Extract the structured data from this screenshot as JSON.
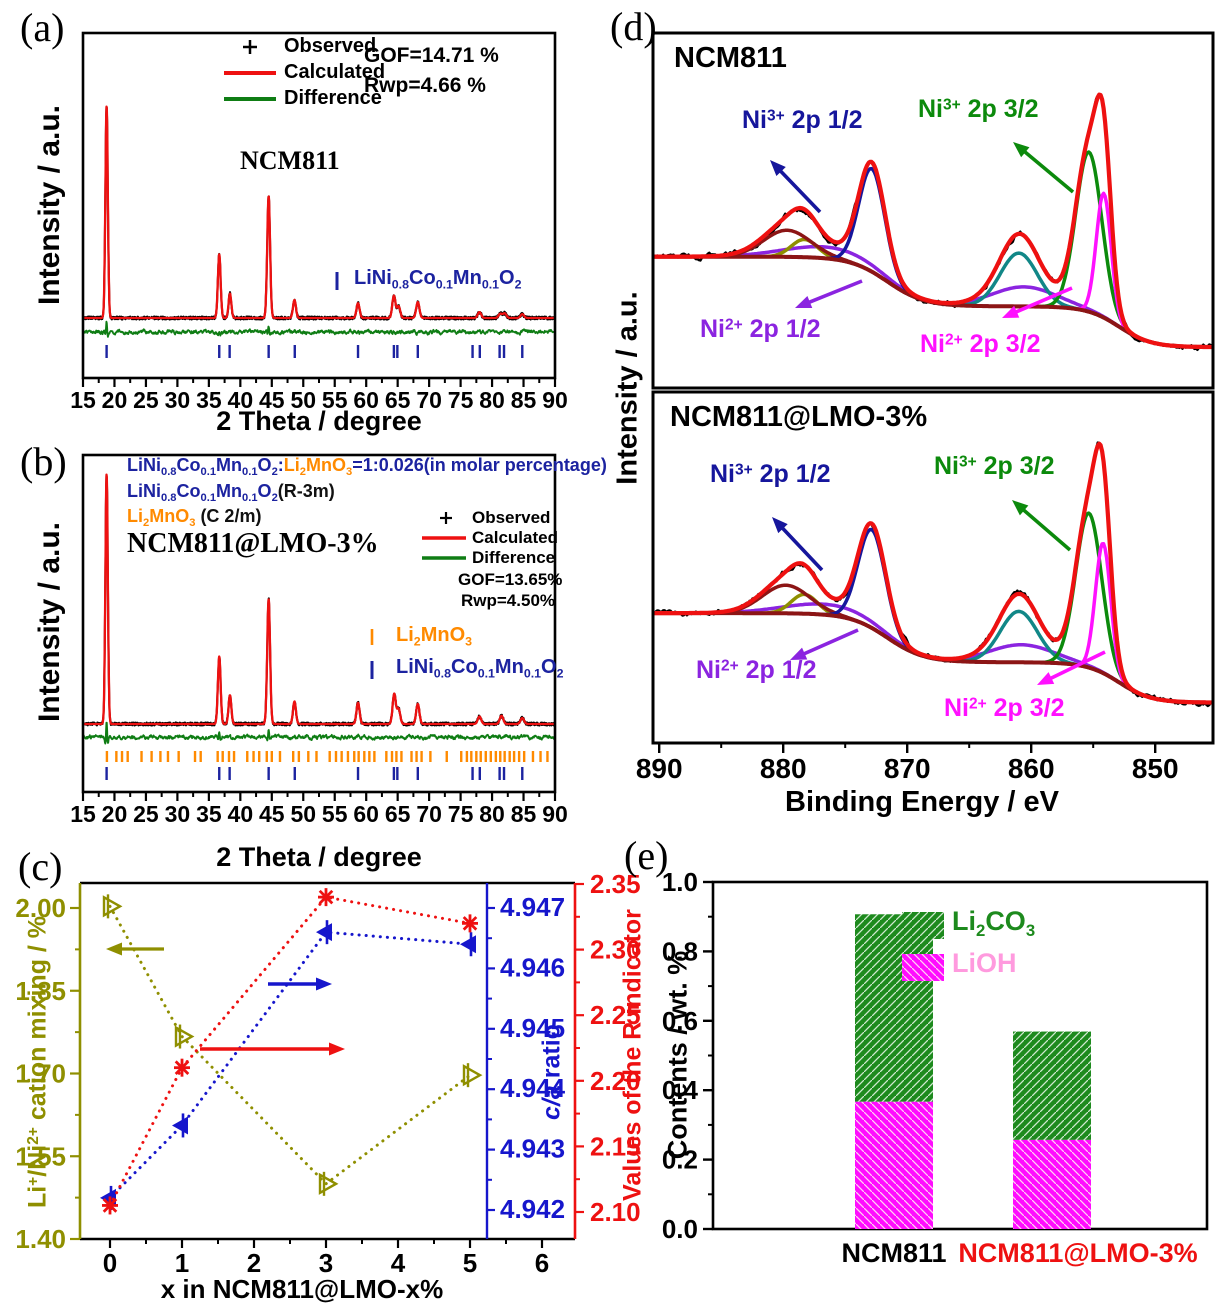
{
  "colors": {
    "observed": "#000000",
    "calculated": "#ee1111",
    "difference": "#0f7d14",
    "phase_blue": "#1c23a0",
    "phase_orange": "#ff8a00",
    "olive": "#8f8f00",
    "axis_blue": "#1616cc",
    "axis_red": "#ee1111",
    "navy": "#16169c",
    "green": "#0c8a0c",
    "magenta": "#ff10ff",
    "teal": "#118787",
    "purple": "#8b24e0",
    "maroon": "#8c1515",
    "bar_green": "#1d8a1d",
    "bar_magenta": "#ff0cff",
    "lioh_pink": "#ff9ade",
    "label_red": "#ee1111"
  },
  "panels": {
    "a": {
      "label": "(a)",
      "ylabel": "Intensity / a.u.",
      "xlabel": "2 Theta / degree",
      "title": "NCM811",
      "legend": [
        "Observed",
        "Calculated",
        "Difference"
      ],
      "gof": "GOF=14.71 %",
      "rwp": "Rwp=4.66 %",
      "phase_formula": [
        {
          "t": "LiNi"
        },
        {
          "sub": "0.8"
        },
        {
          "t": "Co"
        },
        {
          "sub": "0.1"
        },
        {
          "t": "Mn"
        },
        {
          "sub": "0.1"
        },
        {
          "t": "O"
        },
        {
          "sub": "2"
        }
      ]
    },
    "b": {
      "label": "(b)",
      "ylabel": "Intensity / a.u.",
      "xlabel": "2 Theta / degree",
      "lines": [
        [
          {
            "cls": "c-blue",
            "parts": [
              {
                "t": "LiNi"
              },
              {
                "sub": "0.8"
              },
              {
                "t": "Co"
              },
              {
                "sub": "0.1"
              },
              {
                "t": "Mn"
              },
              {
                "sub": "0.1"
              },
              {
                "t": "O"
              },
              {
                "sub": "2"
              },
              {
                "t": ":"
              }
            ]
          },
          {
            "cls": "c-orange",
            "parts": [
              {
                "t": "Li"
              },
              {
                "sub": "2"
              },
              {
                "t": "MnO"
              },
              {
                "sub": "3"
              }
            ]
          },
          {
            "cls": "c-blue",
            "parts": [
              {
                "t": "=1:0.026(in molar percentage)"
              }
            ]
          }
        ],
        [
          {
            "cls": "c-blue",
            "parts": [
              {
                "t": "LiNi"
              },
              {
                "sub": "0.8"
              },
              {
                "t": "Co"
              },
              {
                "sub": "0.1"
              },
              {
                "t": "Mn"
              },
              {
                "sub": "0.1"
              },
              {
                "t": "O"
              },
              {
                "sub": "2"
              }
            ]
          },
          {
            "cls": "c-black",
            "parts": [
              {
                "t": "(R-3m)"
              }
            ]
          }
        ],
        [
          {
            "cls": "c-orange",
            "parts": [
              {
                "t": "Li"
              },
              {
                "sub": "2"
              },
              {
                "t": "MnO"
              },
              {
                "sub": "3"
              }
            ]
          },
          {
            "cls": "c-black",
            "parts": [
              {
                "t": " (C 2/m)"
              }
            ]
          }
        ]
      ],
      "sample": "NCM811@LMO-3%",
      "legend": [
        "Observed",
        "Calculated",
        "Difference"
      ],
      "gof": "GOF=13.65%",
      "rwp": "Rwp=4.50%",
      "tick_legend": [
        {
          "cls": "c-orange",
          "parts": [
            {
              "t": "Li"
            },
            {
              "sub": "2"
            },
            {
              "t": "MnO"
            },
            {
              "sub": "3"
            }
          ]
        },
        {
          "cls": "c-blue",
          "parts": [
            {
              "t": "LiNi"
            },
            {
              "sub": "0.8"
            },
            {
              "t": "Co"
            },
            {
              "sub": "0.1"
            },
            {
              "t": "Mn"
            },
            {
              "sub": "0.1"
            },
            {
              "t": "O"
            },
            {
              "sub": "2"
            }
          ]
        }
      ]
    },
    "c": {
      "label": "(c)",
      "ylabel_left": [
        {
          "t": "Li"
        },
        {
          "sup": "+"
        },
        {
          "t": "/Ni"
        },
        {
          "sup": "2+"
        },
        {
          "t": " cation mixing / %"
        }
      ],
      "ylabel_inner": [
        {
          "i": "c/a"
        },
        {
          "t": " ratio"
        }
      ],
      "ylabel_right": "Values of the R indicator",
      "xlabel": "x in NCM811@LMO-x%"
    },
    "d": {
      "label": "(d)",
      "title_top": "NCM811",
      "title_bottom": "NCM811@LMO-3%",
      "ylabel": "Intensity / a.u.",
      "xlabel": "Binding Energy / eV",
      "labels": {
        "ni3_12": [
          {
            "t": "Ni"
          },
          {
            "sup": "3+"
          },
          {
            "t": " 2p 1/2"
          }
        ],
        "ni3_32": [
          {
            "t": "Ni"
          },
          {
            "sup": "3+"
          },
          {
            "t": " 2p 3/2"
          }
        ],
        "ni2_12": [
          {
            "t": "Ni"
          },
          {
            "sup": "2+"
          },
          {
            "t": " 2p 1/2"
          }
        ],
        "ni2_32": [
          {
            "t": "Ni"
          },
          {
            "sup": "2+"
          },
          {
            "t": " 2p 3/2"
          }
        ]
      }
    },
    "e": {
      "label": "(e)",
      "ylabel": "Contents / wt. %",
      "legend": [
        {
          "name": "Li2CO3",
          "parts": [
            {
              "t": "Li"
            },
            {
              "sub": "2"
            },
            {
              "t": "CO"
            },
            {
              "sub": "3"
            }
          ]
        },
        {
          "name": "LiOH",
          "parts": [
            {
              "t": "LiOH"
            }
          ]
        }
      ],
      "categories": [
        {
          "text": "NCM811"
        },
        {
          "text": "NCM811@LMO-3%"
        }
      ]
    }
  },
  "chart_data": [
    {
      "id": "a",
      "type": "line",
      "title": "NCM811",
      "xlabel": "2 Theta / degree",
      "ylabel": "Intensity / a.u.",
      "xlim": [
        15,
        90
      ],
      "xticks": [
        15,
        20,
        25,
        30,
        35,
        40,
        45,
        50,
        55,
        60,
        65,
        70,
        75,
        80,
        85,
        90
      ],
      "series": [
        "Observed",
        "Calculated",
        "Difference"
      ],
      "fit_stats": {
        "GOF": "14.71 %",
        "Rwp": "4.66 %"
      },
      "phase": "LiNi0.8Co0.1Mn0.1O2",
      "peaks_2theta_relint": [
        [
          18.75,
          1.0
        ],
        [
          36.65,
          0.3
        ],
        [
          38.35,
          0.115
        ],
        [
          44.5,
          0.575
        ],
        [
          48.6,
          0.085
        ],
        [
          58.7,
          0.07
        ],
        [
          64.4,
          0.105
        ],
        [
          65.15,
          0.055
        ],
        [
          68.2,
          0.075
        ],
        [
          78.0,
          0.028
        ],
        [
          81.3,
          0.02
        ],
        [
          82.0,
          0.022
        ],
        [
          84.8,
          0.018
        ]
      ],
      "bragg_ticks_blue": [
        18.75,
        36.65,
        38.3,
        44.5,
        48.65,
        58.7,
        64.4,
        64.95,
        68.2,
        76.9,
        78.05,
        81.2,
        81.9,
        84.8
      ]
    },
    {
      "id": "b",
      "type": "line",
      "title": "NCM811@LMO-3%",
      "xlabel": "2 Theta / degree",
      "ylabel": "Intensity / a.u.",
      "xlim": [
        15,
        90
      ],
      "xticks": [
        15,
        20,
        25,
        30,
        35,
        40,
        45,
        50,
        55,
        60,
        65,
        70,
        75,
        80,
        85,
        90
      ],
      "series": [
        "Observed",
        "Calculated",
        "Difference"
      ],
      "fit_stats": {
        "GOF": "13.65%",
        "Rwp": "4.50%"
      },
      "phases": [
        "LiNi0.8Co0.1Mn0.1O2 (R-3m)",
        "Li2MnO3 (C 2/m)"
      ],
      "ratio_note": "LiNi0.8Co0.1Mn0.1O2:Li2MnO3=1:0.026(in molar percentage)",
      "peaks_2theta_relint": [
        [
          18.75,
          1.0
        ],
        [
          36.65,
          0.27
        ],
        [
          38.35,
          0.115
        ],
        [
          44.5,
          0.5
        ],
        [
          48.6,
          0.09
        ],
        [
          58.7,
          0.085
        ],
        [
          64.45,
          0.12
        ],
        [
          65.15,
          0.06
        ],
        [
          68.2,
          0.08
        ],
        [
          78.0,
          0.03
        ],
        [
          81.5,
          0.033
        ],
        [
          84.8,
          0.024
        ]
      ],
      "bragg_ticks_blue": [
        18.75,
        36.65,
        38.3,
        44.5,
        48.65,
        58.7,
        64.4,
        64.95,
        68.2,
        76.9,
        78.05,
        81.2,
        81.9,
        84.8
      ],
      "bragg_ticks_orange": [
        18.8,
        20.3,
        21.2,
        22.1,
        24.3,
        25.9,
        27.3,
        28.5,
        30.2,
        32.8,
        33.7,
        36.4,
        37.2,
        38.2,
        39.0,
        41.1,
        42.1,
        43.0,
        44.2,
        45.0,
        46.3,
        48.4,
        49.3,
        50.8,
        52.1,
        54.2,
        55.2,
        56.1,
        57.1,
        58.1,
        58.8,
        59.7,
        60.5,
        61.3,
        63.2,
        64.1,
        64.8,
        65.6,
        67.2,
        68.0,
        68.8,
        70.2,
        72.8,
        75.1,
        76.0,
        76.7,
        77.5,
        78.2,
        79.0,
        79.8,
        80.6,
        81.3,
        82.0,
        82.8,
        83.5,
        84.3,
        85.1,
        86.5,
        87.7,
        88.8
      ]
    },
    {
      "id": "c",
      "type": "scatter",
      "x": [
        0,
        1,
        3,
        5
      ],
      "xticks": [
        0,
        1,
        2,
        3,
        4,
        5,
        6
      ],
      "xlabel": "x in NCM811@LMO-x%",
      "series": [
        {
          "name": "Li+/Ni2+ cation mixing / %",
          "axis": "left",
          "color_key": "olive",
          "marker": "triangle-right-open",
          "values": [
            2.003,
            1.767,
            1.5,
            1.697
          ],
          "yticks": [
            1.4,
            1.55,
            1.7,
            1.85,
            2.0
          ]
        },
        {
          "name": "c/a ratio",
          "axis": "inner_right",
          "color_key": "axis_blue",
          "marker": "triangle-left-filled",
          "values": [
            4.9422,
            4.9434,
            4.9466,
            4.9464
          ],
          "yticks": [
            4.942,
            4.943,
            4.944,
            4.945,
            4.946,
            4.947
          ]
        },
        {
          "name": "Values of the R indicator",
          "axis": "right",
          "color_key": "axis_red",
          "marker": "asterisk",
          "values": [
            2.105,
            2.21,
            2.34,
            2.32
          ],
          "yticks": [
            2.1,
            2.15,
            2.2,
            2.25,
            2.3,
            2.35
          ]
        }
      ]
    },
    {
      "id": "d",
      "type": "line",
      "xlabel": "Binding Energy / eV",
      "ylabel": "Intensity / a.u.",
      "xlim": [
        890.5,
        845.2
      ],
      "xticks": [
        890,
        880,
        870,
        860,
        850
      ],
      "panels": [
        {
          "title": "NCM811",
          "background": {
            "base": 0.115,
            "steps": [
              [
                852.9,
                1.3,
                0.115
              ],
              [
                871.6,
                1.5,
                0.14
              ]
            ]
          },
          "components": [
            {
              "name": "Ni2+ 2p 1/2",
              "color": "purple",
              "gaussians": [
                [
                  860.6,
                  2.6,
                  0.055
                ],
                [
                  876.5,
                  3.5,
                  0.032
                ]
              ]
            },
            {
              "name": "satellite 2p 3/2",
              "color": "teal",
              "gaussians": [
                [
                  861.0,
                  1.5,
                  0.15
                ]
              ]
            },
            {
              "name": "satellite 2p 1/2 b",
              "color": "olive",
              "gaussians": [
                [
                  878.3,
                  1.05,
                  0.05
                ]
              ]
            },
            {
              "name": "satellite 2p 1/2",
              "color": "maroon",
              "gaussians": [
                [
                  879.7,
                  1.9,
                  0.075
                ]
              ]
            },
            {
              "name": "Ni3+ 2p 1/2",
              "color": "navy",
              "gaussians": [
                [
                  872.85,
                  1.05,
                  0.29
                ]
              ]
            },
            {
              "name": "Ni3+ 2p 3/2",
              "color": "green",
              "gaussians": [
                [
                  855.35,
                  1.05,
                  0.45
                ]
              ]
            },
            {
              "name": "Ni2+ 2p 3/2",
              "color": "magenta",
              "gaussians": [
                [
                  854.15,
                  0.6,
                  0.35
                ]
              ]
            }
          ]
        },
        {
          "title": "NCM811@LMO-3%",
          "background": {
            "base": 0.115,
            "steps": [
              [
                852.9,
                1.3,
                0.115
              ],
              [
                871.6,
                1.5,
                0.14
              ]
            ]
          },
          "components": [
            {
              "name": "Ni2+ 2p 1/2",
              "color": "purple",
              "gaussians": [
                [
                  860.8,
                  2.6,
                  0.05
                ],
                [
                  876.5,
                  3.5,
                  0.03
                ]
              ]
            },
            {
              "name": "satellite 2p 3/2",
              "color": "teal",
              "gaussians": [
                [
                  861.0,
                  1.5,
                  0.145
                ]
              ]
            },
            {
              "name": "satellite 2p 1/2 b",
              "color": "olive",
              "gaussians": [
                [
                  878.3,
                  1.05,
                  0.055
                ]
              ]
            },
            {
              "name": "satellite 2p 1/2",
              "color": "maroon",
              "gaussians": [
                [
                  879.8,
                  1.9,
                  0.08
                ]
              ]
            },
            {
              "name": "Ni3+ 2p 1/2",
              "color": "navy",
              "gaussians": [
                [
                  872.85,
                  1.1,
                  0.28
                ]
              ]
            },
            {
              "name": "Ni3+ 2p 3/2",
              "color": "green",
              "gaussians": [
                [
                  855.35,
                  1.05,
                  0.44
                ]
              ]
            },
            {
              "name": "Ni2+ 2p 3/2",
              "color": "magenta",
              "gaussians": [
                [
                  854.2,
                  0.62,
                  0.37
                ]
              ]
            }
          ]
        }
      ]
    },
    {
      "id": "e",
      "type": "bar",
      "stacked": true,
      "categories": [
        "NCM811",
        "NCM811@LMO-3%"
      ],
      "series": [
        {
          "name": "LiOH",
          "color_key": "bar_magenta",
          "values": [
            0.367,
            0.257
          ]
        },
        {
          "name": "Li2CO3",
          "color_key": "bar_green",
          "values": [
            0.54,
            0.312
          ]
        }
      ],
      "ylabel": "Contents / wt. %",
      "ylim": [
        0,
        1.0
      ],
      "yticks": [
        0.0,
        0.2,
        0.4,
        0.6,
        0.8,
        1.0
      ]
    }
  ]
}
